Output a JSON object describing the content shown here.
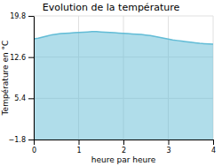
{
  "chart_data": {
    "type": "area",
    "title": "Evolution de la température",
    "xlabel": "heure par heure",
    "ylabel": "Température en °C",
    "color": "#62bcd6",
    "x": [
      0.0,
      0.1,
      0.2,
      0.3,
      0.4,
      0.5,
      0.6,
      0.7,
      0.8,
      0.9,
      1.0,
      1.1,
      1.2,
      1.3,
      1.4,
      1.5,
      1.6,
      1.7,
      1.8,
      1.9,
      2.0,
      2.1,
      2.2,
      2.3,
      2.4,
      2.5,
      2.6,
      2.7,
      2.8,
      2.9,
      3.0,
      3.1,
      3.2,
      3.3,
      3.4,
      3.5,
      3.6,
      3.7,
      3.8,
      3.9,
      4.0
    ],
    "values": [
      15.8,
      15.9,
      16.1,
      16.3,
      16.5,
      16.6,
      16.7,
      16.75,
      16.8,
      16.85,
      16.9,
      16.95,
      17.0,
      17.05,
      17.05,
      17.0,
      16.95,
      16.9,
      16.85,
      16.8,
      16.75,
      16.7,
      16.65,
      16.6,
      16.55,
      16.45,
      16.35,
      16.2,
      16.05,
      15.9,
      15.75,
      15.6,
      15.5,
      15.4,
      15.3,
      15.2,
      15.1,
      15.0,
      14.95,
      14.9,
      14.85
    ],
    "xlim": [
      0,
      4
    ],
    "ylim": [
      -1.8,
      19.8
    ],
    "xticks": [
      0,
      1,
      2,
      3,
      4
    ],
    "yticks": [
      {
        "value": -1.8,
        "label": "−1.8"
      },
      5.4,
      12.6,
      19.8
    ],
    "grid": true
  }
}
